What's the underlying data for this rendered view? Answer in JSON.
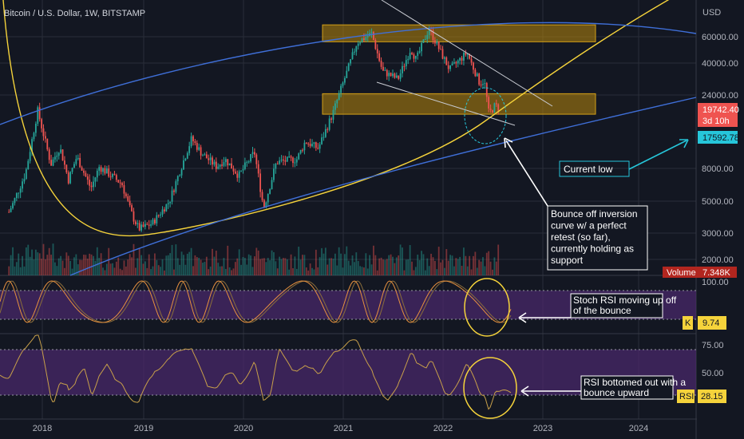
{
  "header": {
    "title": "Bitcoin / U.S. Dollar, 1W, BITSTAMP"
  },
  "colors": {
    "background": "#131722",
    "grid": "#2a2e39",
    "up": "#26a69a",
    "down": "#ef5350",
    "zone": "#b8860b",
    "trend_blue": "#3f6fd8",
    "curve_yellow": "#f5d33b",
    "rsi_band": "#4b2a6e",
    "rsi_line": "#c8a04a",
    "stoch_line": "#e8913f",
    "annotation": "#ffffff",
    "current_low": "#26c6da"
  },
  "price_axis": {
    "currency": "USD",
    "ticks": [
      "60000.00",
      "40000.00",
      "24000.00",
      "8000.00",
      "5000.00",
      "3000.00",
      "2000.00"
    ],
    "last_price": "19742.40",
    "countdown": "3d 10h",
    "current_low_price": "17592.78",
    "volume_label": "Volume",
    "volume_value": "7.348K"
  },
  "stoch_axis": {
    "ticks": [
      "100.00"
    ],
    "label": "K",
    "value": "9.74"
  },
  "rsi_axis": {
    "ticks": [
      "75.00",
      "50.00"
    ],
    "label": "RSI",
    "value": "28.15"
  },
  "annotations": {
    "current_low": "Current low",
    "bounce": [
      "Bounce off inversion",
      "curve w/ a perfect",
      "retest (so far),",
      "currently holding as",
      "support"
    ],
    "stoch": [
      "Stoch RSI moving up off",
      "of the bounce"
    ],
    "rsi": [
      "RSI bottomed out with a",
      "bounce upward"
    ]
  },
  "chart_data": {
    "type": "candlestick",
    "title": "Bitcoin / U.S. Dollar, 1W, BITSTAMP",
    "y_scale": "log",
    "x_labels": [
      "2018",
      "2019",
      "2020",
      "2021",
      "2022",
      "2023",
      "2024"
    ],
    "price_path": [
      [
        "2017-09-01",
        4200
      ],
      [
        "2017-11-01",
        7500
      ],
      [
        "2017-12-15",
        19000
      ],
      [
        "2018-02-01",
        8500
      ],
      [
        "2018-03-05",
        11000
      ],
      [
        "2018-04-05",
        6800
      ],
      [
        "2018-05-05",
        9500
      ],
      [
        "2018-06-25",
        6000
      ],
      [
        "2018-07-25",
        8200
      ],
      [
        "2018-10-15",
        6400
      ],
      [
        "2018-11-25",
        3800
      ],
      [
        "2018-12-15",
        3200
      ],
      [
        "2019-02-01",
        3500
      ],
      [
        "2019-04-05",
        5000
      ],
      [
        "2019-06-25",
        12500
      ],
      [
        "2019-08-01",
        10000
      ],
      [
        "2019-09-25",
        8200
      ],
      [
        "2019-10-25",
        9200
      ],
      [
        "2019-12-15",
        7200
      ],
      [
        "2020-02-10",
        10200
      ],
      [
        "2020-03-15",
        4500
      ],
      [
        "2020-05-01",
        8800
      ],
      [
        "2020-07-15",
        9200
      ],
      [
        "2020-08-15",
        12000
      ],
      [
        "2020-10-01",
        10800
      ],
      [
        "2020-11-25",
        18500
      ],
      [
        "2020-12-31",
        29000
      ],
      [
        "2021-02-20",
        55000
      ],
      [
        "2021-04-15",
        63000
      ],
      [
        "2021-05-25",
        35000
      ],
      [
        "2021-07-20",
        31000
      ],
      [
        "2021-09-05",
        50000
      ],
      [
        "2021-09-25",
        42000
      ],
      [
        "2021-11-10",
        68000
      ],
      [
        "2022-01-25",
        36000
      ],
      [
        "2022-03-30",
        47000
      ],
      [
        "2022-05-15",
        29000
      ],
      [
        "2022-06-01",
        30000
      ],
      [
        "2022-06-18",
        18000
      ],
      [
        "2022-07-10",
        20500
      ],
      [
        "2022-07-25",
        19742
      ]
    ],
    "support_zones": [
      [
        55500,
        72000
      ],
      [
        18000,
        24500
      ]
    ],
    "last_price": 19742.4,
    "current_low": 17592.78,
    "volume_last": "7.348K",
    "stoch_rsi_k": 9.74,
    "rsi": 28.15,
    "rsi_levels": [
      70,
      30
    ],
    "stoch_levels": [
      80,
      20
    ]
  }
}
